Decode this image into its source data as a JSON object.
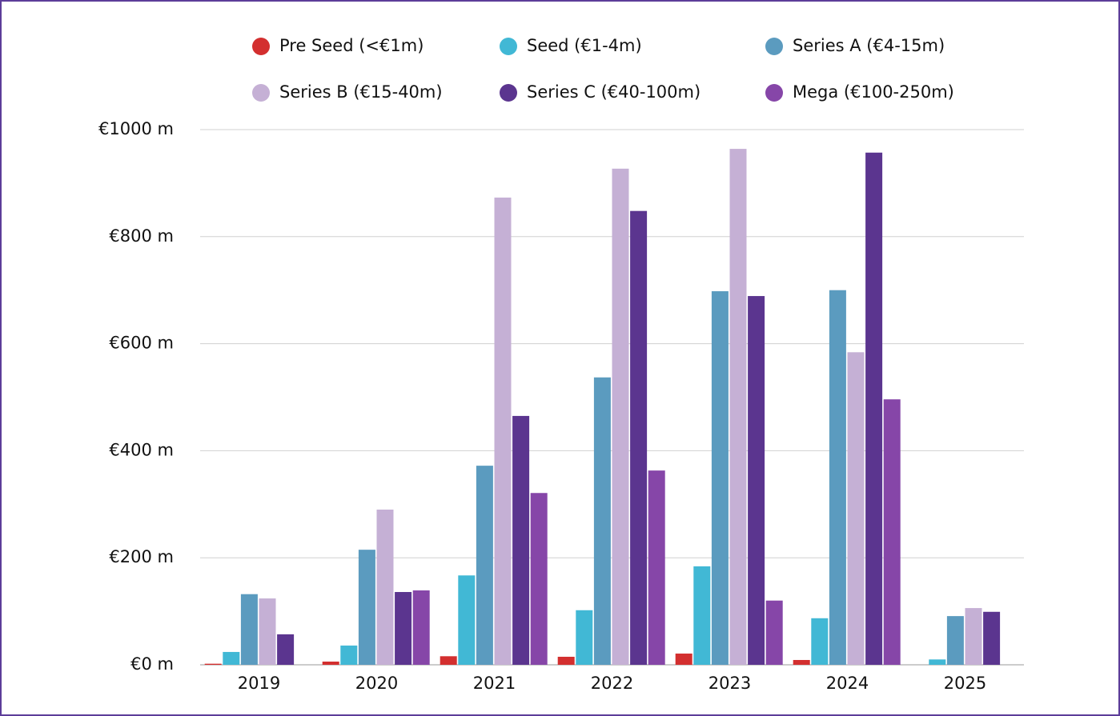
{
  "chart_data": {
    "type": "bar",
    "categories": [
      "2019",
      "2020",
      "2021",
      "2022",
      "2023",
      "2024",
      "2025"
    ],
    "series": [
      {
        "name": "Pre Seed (<€1m)",
        "color": "#d32f2f",
        "values": [
          2,
          6,
          16,
          15,
          21,
          9,
          0
        ]
      },
      {
        "name": "Seed (€1-4m)",
        "color": "#41b8d5",
        "values": [
          24,
          36,
          167,
          102,
          184,
          87,
          10
        ]
      },
      {
        "name": "Series A (€4-15m)",
        "color": "#5b9bbf",
        "values": [
          132,
          215,
          372,
          537,
          698,
          700,
          91
        ]
      },
      {
        "name": "Series B (€15-40m)",
        "color": "#c5b0d5",
        "values": [
          124,
          290,
          873,
          927,
          964,
          584,
          106
        ]
      },
      {
        "name": "Series C (€40-100m)",
        "color": "#5b358f",
        "values": [
          57,
          136,
          465,
          848,
          689,
          957,
          99
        ]
      },
      {
        "name": "Mega (€100-250m)",
        "color": "#8646a8",
        "values": [
          0,
          139,
          321,
          363,
          120,
          496,
          0
        ]
      }
    ],
    "ylim": [
      0,
      1000
    ],
    "yticks": [
      {
        "value": 0,
        "label": "€0 m"
      },
      {
        "value": 200,
        "label": "€200 m"
      },
      {
        "value": 400,
        "label": "€400 m"
      },
      {
        "value": 600,
        "label": "€600 m"
      },
      {
        "value": 800,
        "label": "€800 m"
      },
      {
        "value": 1000,
        "label": "€1000 m"
      }
    ],
    "grid": true
  }
}
